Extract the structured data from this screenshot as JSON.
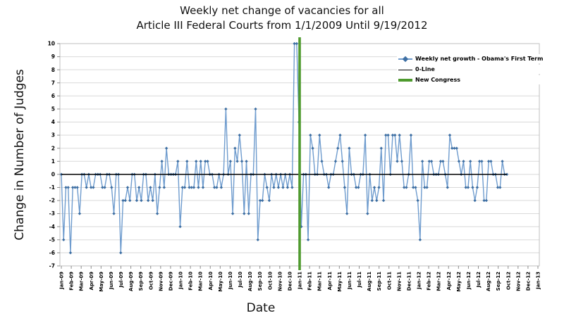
{
  "page": {
    "title_line1": "Weekly net change of vacancies for all",
    "title_line2": "Article III Federal Courts from 1/1/2009 Until 9/19/2012",
    "y_axis_label": "Change in Number of Judges",
    "x_axis_label": "Date"
  },
  "legend": {
    "items": [
      {
        "label": "Weekly net growth - Obama's First Term",
        "swatch": "line-with-diamond-marker",
        "color": "#6f9cce"
      },
      {
        "label": "0-Line",
        "swatch": "thin-line",
        "color": "#000000"
      },
      {
        "label": "New Congress",
        "swatch": "thick-line",
        "color": "#4e9a2e"
      }
    ]
  },
  "chart_data": {
    "type": "line",
    "title": "Weekly net change of vacancies for all Article III Federal Courts from 1/1/2009 Until 9/19/2012",
    "xlabel": "Date",
    "ylabel": "Change in Number of Judges",
    "ylim": [
      -7,
      10
    ],
    "y_ticks": [
      10,
      9,
      8,
      7,
      6,
      5,
      4,
      3,
      2,
      1,
      0,
      -1,
      -2,
      -3,
      -4,
      -5,
      -6,
      -7
    ],
    "x_tick_labels": [
      "Jan-09",
      "Feb-09",
      "Mar-09",
      "Apr-09",
      "May-09",
      "Jun-09",
      "Jul-09",
      "Aug-09",
      "Sep-09",
      "Oct-09",
      "Nov-09",
      "Dec-09",
      "Jan-10",
      "Feb-10",
      "Mar-10",
      "Apr-10",
      "May-10",
      "Jun-10",
      "Jul-10",
      "Aug-10",
      "Sep-10",
      "Oct-10",
      "Nov-10",
      "Dec-10",
      "Jan-11",
      "Feb-11",
      "Mar-11",
      "Apr-11",
      "May-11",
      "Jun-11",
      "Jul-11",
      "Aug-11",
      "Sep-11",
      "Oct-11",
      "Nov-11",
      "Dec-11",
      "Jan-12",
      "Feb-12",
      "Mar-12",
      "Apr-12",
      "May-12",
      "Jun-12",
      "Jul-12",
      "Aug-12",
      "Sep-12",
      "Oct-12",
      "Nov-12",
      "Dec-12",
      "Jan-13"
    ],
    "weeks_per_month": 4.345,
    "grid": true,
    "legend_position": "upper-right-inside",
    "series": [
      {
        "name": "Weekly net growth - Obama's First Term",
        "x_unit": "week_index_from_2009-01-01",
        "line_color": "#6f9cce",
        "marker_color": "#3e6fa3",
        "marker": "diamond",
        "values": [
          0,
          -5,
          -1,
          -1,
          -6,
          -1,
          -1,
          -1,
          -3,
          0,
          0,
          -1,
          0,
          -1,
          -1,
          0,
          0,
          0,
          -1,
          -1,
          0,
          0,
          -1,
          -3,
          0,
          0,
          -6,
          -2,
          -2,
          -1,
          -2,
          0,
          0,
          -2,
          -1,
          -2,
          0,
          0,
          -2,
          -1,
          -2,
          0,
          -3,
          -1,
          1,
          -1,
          2,
          0,
          0,
          0,
          0,
          1,
          -4,
          -1,
          -1,
          1,
          -1,
          -1,
          -1,
          1,
          -1,
          1,
          -1,
          1,
          1,
          0,
          0,
          -1,
          -1,
          0,
          -1,
          0,
          5,
          0,
          1,
          -3,
          2,
          1,
          3,
          1,
          -3,
          1,
          -3,
          0,
          0,
          5,
          -5,
          -2,
          -2,
          0,
          -1,
          -2,
          0,
          -1,
          0,
          -1,
          0,
          -1,
          0,
          -1,
          0,
          -1,
          10,
          10,
          4,
          -4,
          0,
          0,
          -5,
          3,
          2,
          0,
          0,
          3,
          1,
          0,
          0,
          -1,
          0,
          0,
          1,
          2,
          3,
          1,
          -1,
          -3,
          2,
          0,
          0,
          -1,
          -1,
          0,
          0,
          3,
          -3,
          0,
          -2,
          -1,
          -2,
          -1,
          2,
          -2,
          3,
          3,
          0,
          3,
          3,
          1,
          3,
          1,
          -1,
          -1,
          0,
          3,
          -1,
          -1,
          -2,
          -5,
          1,
          -1,
          -1,
          1,
          1,
          0,
          0,
          0,
          1,
          1,
          0,
          -1,
          3,
          2,
          2,
          2,
          1,
          0,
          1,
          -1,
          -1,
          1,
          -1,
          -2,
          -1,
          1,
          1,
          -2,
          -2,
          1,
          1,
          0,
          0,
          -1,
          -1,
          1,
          0,
          0
        ]
      },
      {
        "name": "0-Line",
        "line_color": "#000000",
        "constant_value": 0
      }
    ],
    "new_congress_line": {
      "name": "New Congress",
      "at_x_label": "Jan-11",
      "month_index": 24,
      "color": "#4e9a2e"
    },
    "colors": {
      "gridline": "#d9d9d9",
      "plot_border": "#bfbfbf",
      "tick": "#8c8c8c",
      "text": "#000000",
      "background": "#ffffff"
    }
  }
}
